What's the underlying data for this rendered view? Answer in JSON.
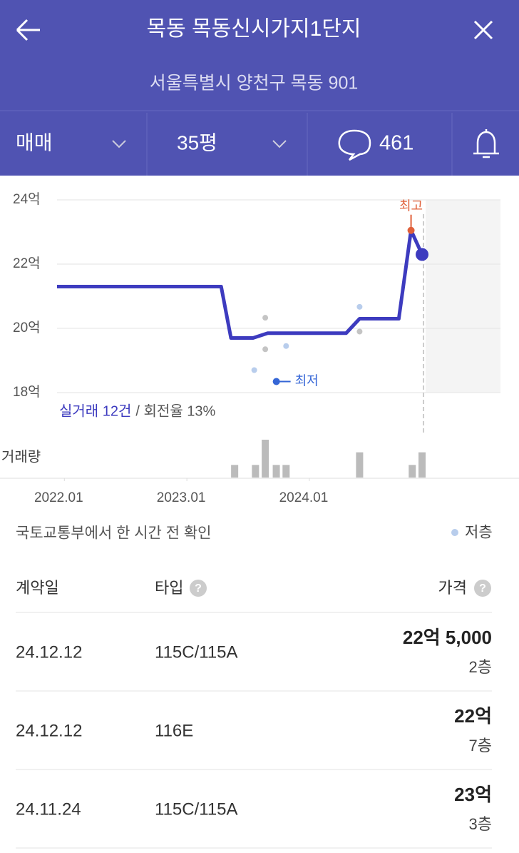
{
  "header": {
    "title": "목동 목동신시가지1단지",
    "address": "서울특별시 양천구 목동 901"
  },
  "tabs": {
    "trade": "매매",
    "size": "35평",
    "comments": "461"
  },
  "chart_data": {
    "type": "line",
    "xlim": [
      2021.94,
      2025.56
    ],
    "xticks": [
      {
        "value": 2022,
        "label": "2022.01"
      },
      {
        "value": 2023,
        "label": "2023.01"
      },
      {
        "value": 2024,
        "label": "2024.01"
      }
    ],
    "ylim": [
      18,
      24
    ],
    "yticks": [
      {
        "value": 18,
        "label": "18억"
      },
      {
        "value": 20,
        "label": "20억"
      },
      {
        "value": 22,
        "label": "22억"
      },
      {
        "value": 24,
        "label": "24억"
      }
    ],
    "grid": true,
    "series": [
      {
        "color": "#3d3bbf",
        "x": [
          2021.94,
          2023.28,
          2023.36,
          2023.54,
          2023.66,
          2024.3,
          2024.41,
          2024.73,
          2024.83,
          2024.92
        ],
        "values": [
          21.3,
          21.3,
          19.7,
          19.7,
          19.85,
          19.85,
          20.3,
          20.3,
          23.05,
          22.3
        ]
      }
    ],
    "transactions": [
      {
        "name": "저층",
        "color": "#b8cdec",
        "x": [
          2023.81,
          2023.55,
          2024.41
        ],
        "values": [
          19.45,
          18.7,
          20.67
        ]
      },
      {
        "color": "#c4c4c4",
        "x": [
          2023.64,
          2023.64,
          2024.41
        ],
        "values": [
          20.33,
          19.35,
          19.9
        ]
      }
    ],
    "max_label": "최고",
    "min_label": "최저",
    "summary": {
      "count": "실거래 12건",
      "rate": "/ 회전율 13%"
    },
    "volume": {
      "label": "거래량",
      "ylim": [
        0,
        3
      ],
      "x": [
        2023.39,
        2023.56,
        2023.64,
        2023.73,
        2023.81,
        2024.41,
        2024.84,
        2024.92
      ],
      "values": [
        1,
        1,
        3,
        1,
        1,
        2,
        1,
        2
      ]
    }
  },
  "source": "국토교통부에서 한 시간 전 확인",
  "table": {
    "headers": [
      "계약일",
      "타입",
      "가격"
    ],
    "rows": [
      {
        "date": "24.12.12",
        "type": "115C/115A",
        "price": "22억 5,000",
        "floor": "2층"
      },
      {
        "date": "24.12.12",
        "type": "116E",
        "price": "22억",
        "floor": "7층"
      },
      {
        "date": "24.11.24",
        "type": "115C/115A",
        "price": "23억",
        "floor": "3층"
      }
    ]
  }
}
